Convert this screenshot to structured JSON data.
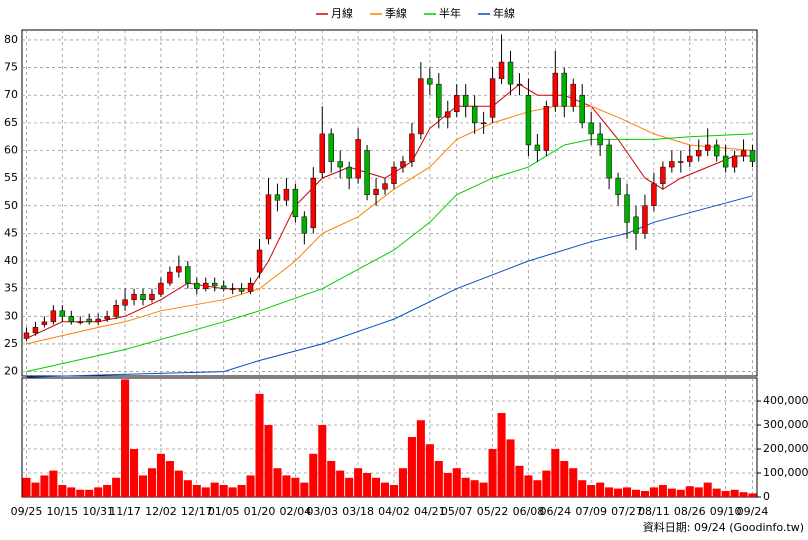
{
  "chart_data": {
    "type": "candlestick",
    "categories": [
      "09/25",
      null,
      null,
      null,
      "10/15",
      null,
      null,
      null,
      "10/31",
      null,
      null,
      "11/17",
      null,
      null,
      null,
      "12/02",
      null,
      null,
      null,
      "12/17",
      null,
      null,
      "01/05",
      null,
      null,
      null,
      "01/20",
      null,
      null,
      null,
      "02/04",
      null,
      null,
      "03/03",
      null,
      null,
      null,
      "03/18",
      null,
      null,
      null,
      "04/02",
      null,
      null,
      null,
      "04/21",
      null,
      null,
      "05/07",
      null,
      null,
      null,
      "05/22",
      null,
      null,
      null,
      "06/08",
      null,
      null,
      "06/24",
      null,
      null,
      null,
      "07/09",
      null,
      null,
      null,
      "07/27",
      null,
      null,
      "08/11",
      null,
      null,
      null,
      "08/26",
      null,
      null,
      null,
      "09/10",
      null,
      null,
      "09/24"
    ],
    "open": [
      26,
      27,
      28.5,
      29,
      31,
      30,
      29,
      29.5,
      29,
      29.5,
      30,
      32,
      33,
      34,
      33,
      34,
      36,
      38,
      39,
      36,
      35,
      36,
      35.5,
      35,
      35,
      34.5,
      38,
      44,
      52,
      51,
      53,
      48,
      46,
      56,
      63,
      58,
      57,
      55,
      60,
      52,
      53,
      54,
      57,
      58,
      63,
      73,
      72,
      66,
      67,
      70,
      68,
      65,
      66,
      73,
      76,
      72,
      70,
      61,
      60,
      68,
      74,
      68,
      70,
      65,
      63,
      61,
      55,
      52,
      48,
      45,
      50,
      54,
      57,
      58,
      58,
      59,
      60,
      61,
      59,
      57,
      59,
      60
    ],
    "high": [
      28,
      29,
      30,
      32,
      32,
      31,
      30,
      30.5,
      30.5,
      31,
      33,
      35,
      35,
      35,
      35,
      37,
      39,
      41,
      40,
      37,
      37,
      37,
      36.5,
      36,
      36,
      37,
      44,
      55,
      54,
      55,
      54,
      49,
      57,
      68,
      64,
      60,
      58,
      64,
      61,
      55,
      55,
      58,
      59,
      65,
      76,
      75,
      74,
      69,
      72,
      72,
      70,
      67,
      75,
      81,
      78,
      74,
      73,
      63,
      69,
      78,
      75,
      73,
      72,
      67,
      65,
      62,
      56,
      54,
      50,
      52,
      56,
      58,
      60,
      60,
      61,
      62,
      64,
      62,
      61,
      60,
      62,
      61
    ],
    "low": [
      25.5,
      26.5,
      28,
      28.5,
      29,
      28.5,
      28.5,
      28.5,
      28.5,
      29,
      29.5,
      31,
      32,
      32,
      32.5,
      33.5,
      35.5,
      37,
      35,
      34,
      34.5,
      34.5,
      34.5,
      34,
      34,
      34,
      37,
      43,
      49,
      50,
      47,
      43,
      45,
      55,
      56,
      55,
      53,
      54,
      51,
      50,
      52,
      53,
      56,
      57,
      62,
      70,
      64,
      64,
      66,
      66,
      63,
      63,
      65,
      72,
      70,
      70,
      59,
      58,
      59,
      67,
      66,
      67,
      64,
      61,
      59,
      53,
      50,
      44,
      42,
      44,
      49,
      53,
      56,
      56,
      57,
      58,
      59,
      58,
      56,
      56,
      58,
      57
    ],
    "close": [
      27,
      28,
      29,
      31,
      30,
      29,
      29,
      29,
      29.5,
      30,
      32,
      33,
      34,
      33,
      34,
      36,
      38,
      39,
      36,
      35,
      36,
      35.5,
      35,
      35,
      34.5,
      36,
      42,
      52,
      51,
      53,
      48,
      45,
      55,
      63,
      58,
      57,
      55,
      62,
      52,
      53,
      54,
      57,
      58,
      63,
      73,
      72,
      66,
      67,
      70,
      68,
      65,
      65,
      73,
      76,
      72,
      72,
      61,
      60,
      68,
      74,
      68,
      72,
      65,
      63,
      61,
      55,
      52,
      47,
      45,
      50,
      54,
      57,
      58,
      58,
      59,
      60,
      61,
      59,
      57,
      59,
      60,
      58
    ],
    "up_color": "#ff0000",
    "down_color": "#00b000",
    "volume": [
      80000,
      60000,
      90000,
      110000,
      50000,
      40000,
      30000,
      30000,
      40000,
      50000,
      80000,
      490000,
      200000,
      90000,
      120000,
      180000,
      150000,
      110000,
      70000,
      50000,
      40000,
      60000,
      50000,
      40000,
      50000,
      90000,
      430000,
      300000,
      120000,
      90000,
      80000,
      60000,
      180000,
      300000,
      150000,
      110000,
      80000,
      120000,
      100000,
      80000,
      60000,
      50000,
      120000,
      250000,
      320000,
      220000,
      150000,
      100000,
      120000,
      80000,
      70000,
      60000,
      200000,
      350000,
      240000,
      130000,
      90000,
      70000,
      110000,
      200000,
      150000,
      120000,
      70000,
      50000,
      60000,
      40000,
      35000,
      40000,
      30000,
      25000,
      40000,
      50000,
      35000,
      30000,
      45000,
      40000,
      60000,
      35000,
      25000,
      30000,
      20000,
      15000
    ],
    "volume_color": "#ff0000",
    "series": [
      {
        "name": "月線",
        "color": "#d00000",
        "x": [
          0,
          4,
          8,
          11,
          15,
          18,
          22,
          25,
          27,
          30,
          33,
          36,
          40,
          43,
          45,
          48,
          52,
          55,
          57,
          60,
          63,
          66,
          69,
          71,
          73,
          76,
          79,
          81
        ],
        "values": [
          26,
          29,
          29,
          30,
          33,
          36,
          35,
          35,
          40,
          50,
          55,
          57,
          55,
          58,
          64,
          68,
          68,
          72,
          70,
          70,
          68,
          62,
          55,
          53,
          55,
          57,
          59,
          59
        ]
      },
      {
        "name": "季線",
        "color": "#ff8000",
        "x": [
          0,
          8,
          11,
          15,
          22,
          26,
          30,
          33,
          37,
          41,
          45,
          48,
          52,
          56,
          59,
          63,
          66,
          70,
          74,
          81
        ],
        "values": [
          25,
          28,
          29,
          31,
          33,
          35,
          40,
          45,
          48,
          53,
          57,
          62,
          65,
          67,
          68,
          68,
          66,
          63,
          61,
          60
        ]
      },
      {
        "name": "半年",
        "color": "#00cc00",
        "x": [
          0,
          11,
          22,
          26,
          33,
          41,
          45,
          48,
          52,
          56,
          60,
          63,
          67,
          70,
          74,
          81
        ],
        "values": [
          20,
          24,
          29,
          31,
          35,
          42,
          47,
          52,
          55,
          57,
          61,
          62,
          62,
          62,
          62.5,
          63
        ]
      },
      {
        "name": "年線",
        "color": "#0050c0",
        "x": [
          0,
          22,
          26,
          33,
          41,
          48,
          56,
          63,
          67,
          70,
          81
        ],
        "values": [
          19,
          20,
          22,
          25,
          29.5,
          35,
          40,
          43.5,
          45,
          47,
          51.8
        ]
      }
    ],
    "ylim": [
      19.2,
      81.8
    ],
    "yticks": [
      20,
      25,
      30,
      35,
      40,
      45,
      50,
      55,
      60,
      65,
      70,
      75,
      80
    ],
    "y2lim": [
      0,
      496000
    ],
    "y2ticks": [
      0,
      {
        "value": 100000,
        "label": "100,000"
      },
      {
        "value": 200000,
        "label": "200,000"
      },
      {
        "value": 300000,
        "label": "300,000"
      },
      {
        "value": 400000,
        "label": "400,000"
      }
    ],
    "grid": true,
    "footer": "資料日期: 09/24  (Goodinfo.tw)"
  }
}
